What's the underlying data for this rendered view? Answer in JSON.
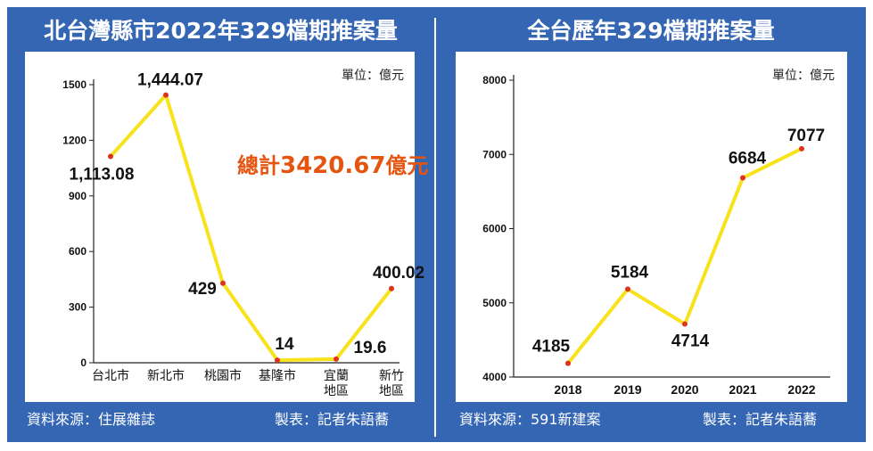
{
  "left_panel": {
    "title": "北台灣縣市2022年329檔期推案量",
    "unit": "單位：億元",
    "total_prefix": "總計",
    "total_value": "3420.67",
    "total_suffix": "億元",
    "source": "資料來源：住展雜誌",
    "credit": "製表：記者朱語蕎"
  },
  "right_panel": {
    "title": "全台歷年329檔期推案量",
    "unit": "單位：億元",
    "source": "資料來源：591新建案",
    "credit": "製表：記者朱語蕎"
  },
  "colors": {
    "background": "#3466b4",
    "line": "#f7e21b",
    "marker": "#e0301e",
    "total": "#e65510"
  },
  "chart_data": [
    {
      "type": "line",
      "title": "北台灣縣市2022年329檔期推案量",
      "categories": [
        "台北市",
        "新北市",
        "桃園市",
        "基隆市",
        "宜蘭\n地區",
        "新竹\n地區"
      ],
      "values": [
        1113.08,
        1444.07,
        429,
        14,
        19.6,
        400.02
      ],
      "data_labels": [
        "1,113.08",
        "1,444.07",
        "429",
        "14",
        "19.6",
        "400.02"
      ],
      "ylim": [
        0,
        1500
      ],
      "yticks": [
        0,
        300,
        600,
        900,
        1200,
        1500
      ],
      "grid": false
    },
    {
      "type": "line",
      "title": "全台歷年329檔期推案量",
      "categories": [
        "2018",
        "2019",
        "2020",
        "2021",
        "2022"
      ],
      "values": [
        4185,
        5184,
        4714,
        6684,
        7077
      ],
      "data_labels": [
        "4185",
        "5184",
        "4714",
        "6684",
        "7077"
      ],
      "ylim": [
        4000,
        8000
      ],
      "yticks": [
        4000,
        5000,
        6000,
        7000,
        8000
      ],
      "grid": false
    }
  ]
}
